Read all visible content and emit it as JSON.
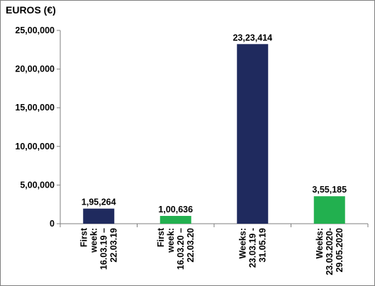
{
  "chart_data": {
    "type": "bar",
    "title": "EUROS (€)",
    "xlabel": "",
    "ylabel": "",
    "ylim": [
      0,
      2500000
    ],
    "yticks": [
      0,
      500000,
      1000000,
      1500000,
      2000000,
      2500000
    ],
    "ytick_labels": [
      "0",
      "5,00,000",
      "10,00,000",
      "15,00,000",
      "20,00,000",
      "25,00,000"
    ],
    "categories": [
      [
        "First",
        "week:",
        "16.03.19 –",
        "22.03.19"
      ],
      [
        "First",
        "week:",
        "16.03.20 –",
        "22.03.20"
      ],
      [
        "Weeks:",
        "23.03.19 -",
        "31.05.19"
      ],
      [
        "Weeks:",
        "23.03.2020-",
        "29.05.2020"
      ]
    ],
    "values": [
      195264,
      100636,
      2323414,
      355185
    ],
    "value_labels": [
      "1,95,264",
      "1,00,636",
      "23,23,414",
      "3,55,185"
    ],
    "bar_colors": [
      "#1f2a5e",
      "#22b04f",
      "#1f2a5e",
      "#22b04f"
    ],
    "grid": false,
    "legend": "none"
  }
}
